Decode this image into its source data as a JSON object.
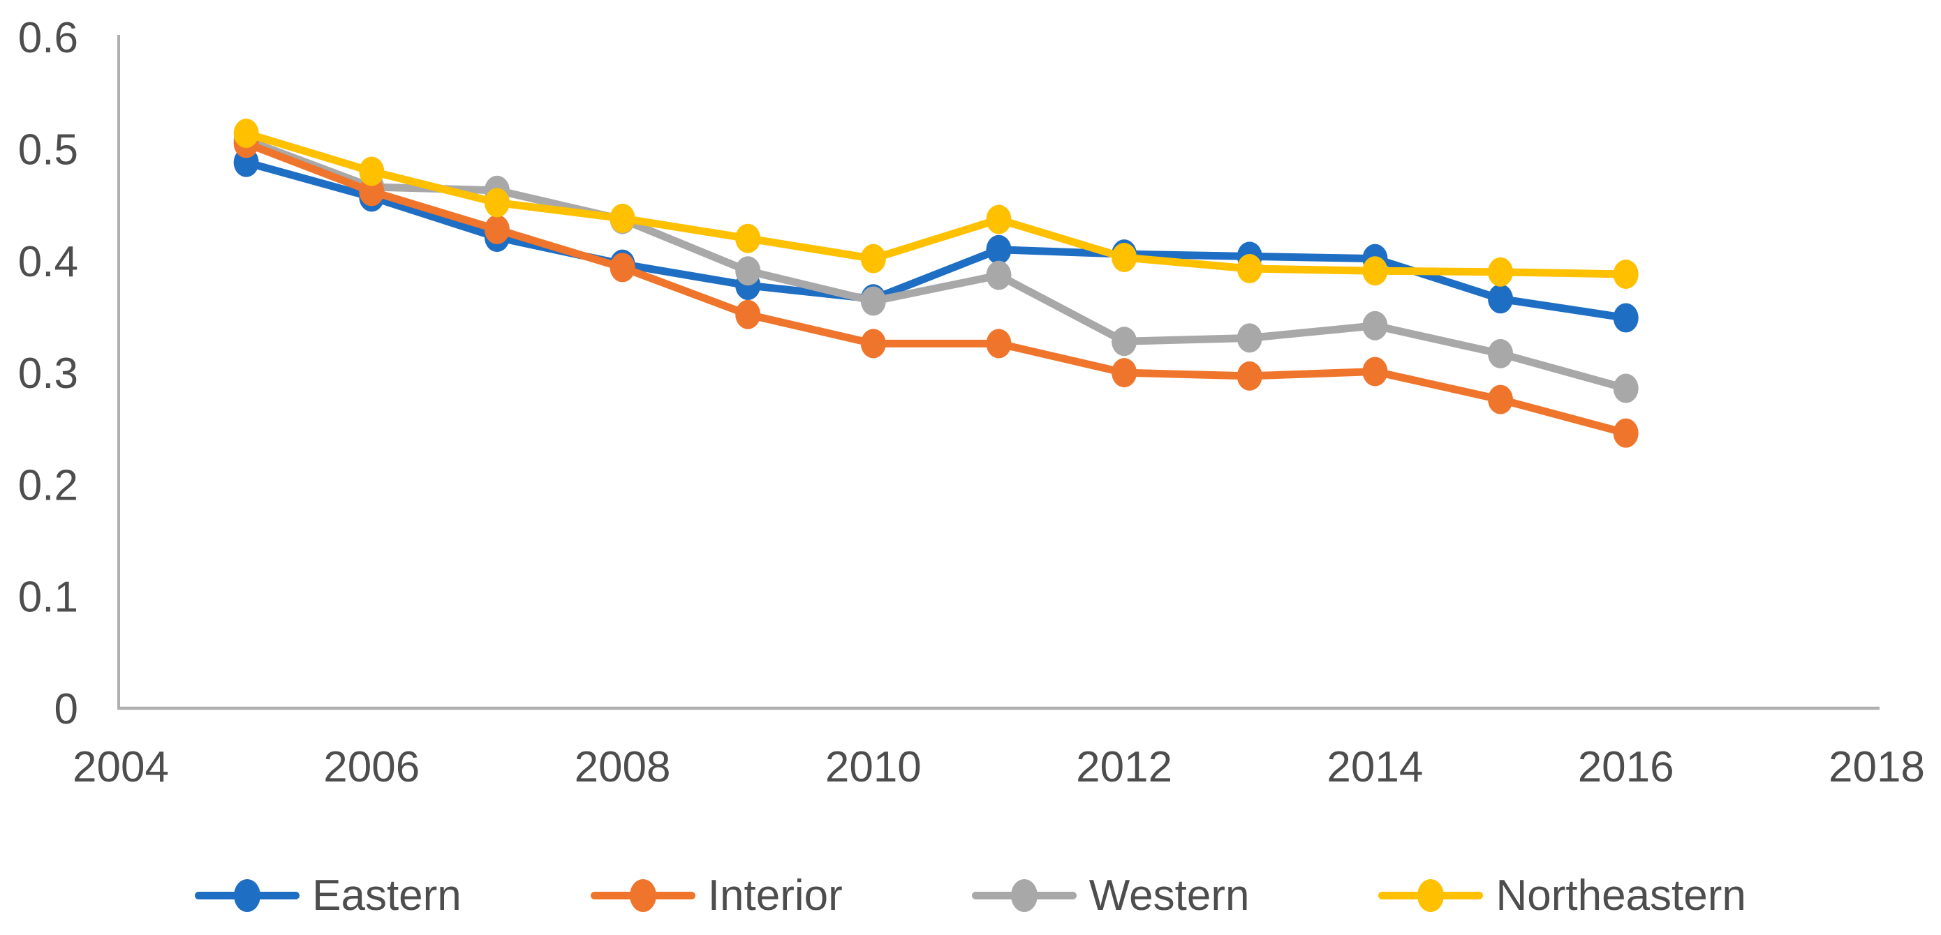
{
  "chart_data": {
    "type": "line",
    "x": [
      2005,
      2006,
      2007,
      2008,
      2009,
      2010,
      2011,
      2012,
      2013,
      2014,
      2015,
      2016
    ],
    "series": [
      {
        "name": "Eastern",
        "color": "#1E6EC4",
        "values": [
          0.488,
          0.457,
          0.421,
          0.397,
          0.378,
          0.366,
          0.41,
          0.406,
          0.404,
          0.402,
          0.366,
          0.349
        ]
      },
      {
        "name": "Interior",
        "color": "#F0752C",
        "values": [
          0.505,
          0.462,
          0.428,
          0.394,
          0.352,
          0.326,
          0.326,
          0.3,
          0.297,
          0.301,
          0.276,
          0.246
        ]
      },
      {
        "name": "Western",
        "color": "#A8A8A8",
        "values": [
          0.508,
          0.466,
          0.463,
          0.437,
          0.391,
          0.364,
          0.387,
          0.328,
          0.331,
          0.342,
          0.317,
          0.286
        ]
      },
      {
        "name": "Northeastern",
        "color": "#FFC000",
        "values": [
          0.514,
          0.48,
          0.452,
          0.438,
          0.42,
          0.402,
          0.437,
          0.403,
          0.393,
          0.391,
          0.39,
          0.388
        ]
      }
    ],
    "x_axis": {
      "range": [
        2004,
        2018
      ],
      "tick_values": [
        2004,
        2006,
        2008,
        2010,
        2012,
        2014,
        2016,
        2018
      ],
      "tick_labels": [
        "2004",
        "2006",
        "2008",
        "2010",
        "2012",
        "2014",
        "2016",
        "2018"
      ]
    },
    "y_axis": {
      "range": [
        0,
        0.6
      ],
      "tick_values": [
        0,
        0.1,
        0.2,
        0.3,
        0.4,
        0.5,
        0.6
      ],
      "tick_labels": [
        "0",
        "0.1",
        "0.2",
        "0.3",
        "0.4",
        "0.5",
        "0.6"
      ]
    },
    "title": "",
    "xlabel": "",
    "ylabel": "",
    "grid": false,
    "legend": {
      "position": "bottom",
      "entries": [
        "Eastern",
        "Interior",
        "Western",
        "Northeastern"
      ]
    },
    "draw_order": [
      0,
      2,
      1,
      3
    ],
    "colors": {
      "background": "#FFFFFF",
      "axis_line": "#AFAFAF",
      "tick_label": "#4D4D4D",
      "legend_label": "#4D4D4D"
    }
  }
}
